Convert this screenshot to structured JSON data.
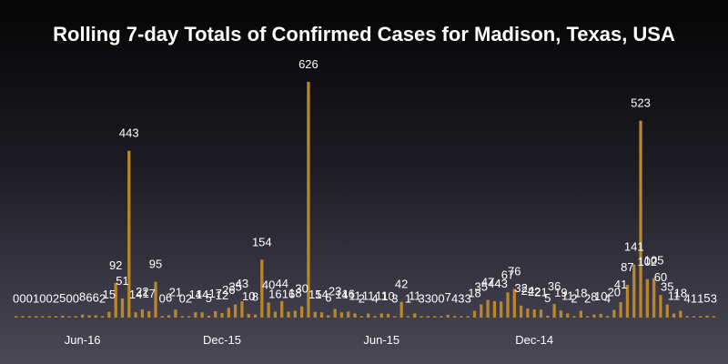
{
  "chart_data": {
    "type": "bar",
    "title": "Rolling 7-day Totals of Confirmed Cases for Madison, Texas, USA",
    "xlabel": "",
    "ylabel": "",
    "ylim": [
      0,
      640
    ],
    "grid": false,
    "x_tick_labels": [
      "Jun-16",
      "Dec-15",
      "Jun-15",
      "Dec-14"
    ],
    "x_tick_positions": [
      10,
      31,
      55,
      78
    ],
    "values": [
      0,
      0,
      0,
      1,
      0,
      0,
      2,
      5,
      0,
      0,
      8,
      6,
      6,
      2,
      15,
      92,
      51,
      443,
      14,
      22,
      17,
      95,
      0,
      6,
      21,
      0,
      2,
      14,
      14,
      5,
      17,
      12,
      26,
      35,
      43,
      10,
      8,
      154,
      40,
      16,
      44,
      16,
      18,
      30,
      626,
      15,
      14,
      6,
      23,
      14,
      16,
      11,
      2,
      11,
      4,
      11,
      10,
      3,
      42,
      1,
      11,
      3,
      3,
      0,
      0,
      7,
      4,
      3,
      3,
      18,
      35,
      47,
      44,
      43,
      67,
      76,
      32,
      24,
      22,
      21,
      5,
      36,
      19,
      11,
      2,
      18,
      2,
      8,
      10,
      4,
      20,
      41,
      87,
      141,
      523,
      102,
      105,
      60,
      35,
      11,
      18,
      4,
      1,
      1,
      5,
      3
    ],
    "bar_color": "#b8862b"
  }
}
